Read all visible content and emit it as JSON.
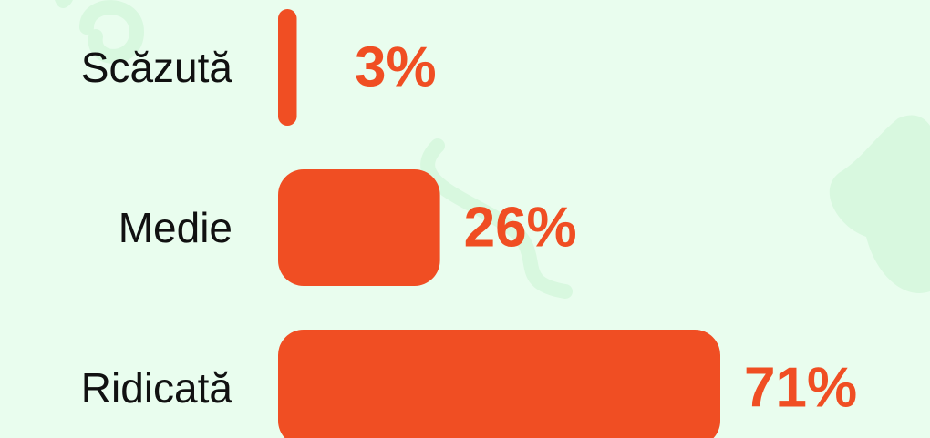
{
  "chart_data": {
    "type": "bar",
    "orientation": "horizontal",
    "categories": [
      "Scăzută",
      "Medie",
      "Ridicată"
    ],
    "values": [
      3,
      26,
      71
    ],
    "value_labels": [
      "3%",
      "26%",
      "71%"
    ],
    "color": "#f04e23"
  }
}
